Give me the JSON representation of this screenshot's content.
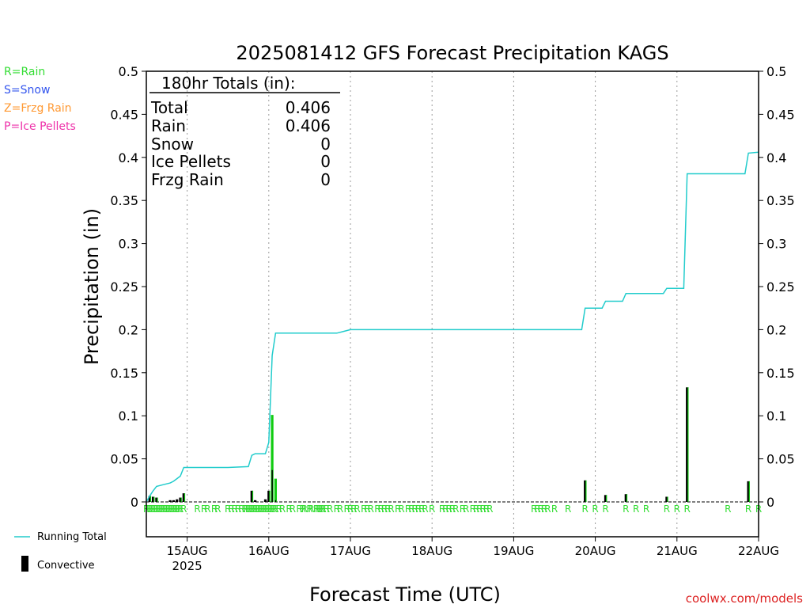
{
  "chart_data": {
    "type": "bar",
    "title": "2025081412 GFS Forecast Precipitation KAGS",
    "ylabel": "Precipitation (in)",
    "xlabel": "Forecast Time (UTC)",
    "credit": "coolwx.com/models",
    "ylim": [
      0,
      0.5
    ],
    "x_unit": "hours from 14AUG 12Z",
    "xlim": [
      0,
      180
    ],
    "yticks": [
      "0",
      "0.05",
      "0.1",
      "0.15",
      "0.2",
      "0.25",
      "0.3",
      "0.35",
      "0.4",
      "0.45",
      "0.5"
    ],
    "xticks": [
      {
        "x": 12,
        "label": "15AUG",
        "sub": "2025"
      },
      {
        "x": 36,
        "label": "16AUG"
      },
      {
        "x": 60,
        "label": "17AUG"
      },
      {
        "x": 84,
        "label": "18AUG"
      },
      {
        "x": 108,
        "label": "19AUG"
      },
      {
        "x": 132,
        "label": "20AUG"
      },
      {
        "x": 156,
        "label": "21AUG"
      },
      {
        "x": 180,
        "label": "22AUG"
      }
    ],
    "legend_types": [
      {
        "text": "R=Rain",
        "color": "#33dd33"
      },
      {
        "text": "S=Snow",
        "color": "#3355ee"
      },
      {
        "text": "Z=Frzg Rain",
        "color": "#ff9933"
      },
      {
        "text": "P=Ice Pellets",
        "color": "#ee33aa"
      }
    ],
    "legend_series": {
      "running_total": "Running Total",
      "convective": "Convective"
    },
    "totals": {
      "heading": "180hr Totals (in):",
      "rows": [
        {
          "label": "Total",
          "value": "0.406"
        },
        {
          "label": "Rain",
          "value": "0.406"
        },
        {
          "label": "Snow",
          "value": "0"
        },
        {
          "label": "Ice Pellets",
          "value": "0"
        },
        {
          "label": "Frzg Rain",
          "value": "0"
        }
      ]
    },
    "bars": [
      {
        "x": 1,
        "total": 0.007,
        "conv": 0.007
      },
      {
        "x": 2,
        "total": 0.006,
        "conv": 0.006
      },
      {
        "x": 3,
        "total": 0.005,
        "conv": 0.005
      },
      {
        "x": 7,
        "total": 0.002,
        "conv": 0.002
      },
      {
        "x": 8,
        "total": 0.002,
        "conv": 0.002
      },
      {
        "x": 9,
        "total": 0.003,
        "conv": 0.003
      },
      {
        "x": 10,
        "total": 0.005,
        "conv": 0.005
      },
      {
        "x": 11,
        "total": 0.01,
        "conv": 0.01
      },
      {
        "x": 31,
        "total": 0.013,
        "conv": 0.013
      },
      {
        "x": 32,
        "total": 0.002,
        "conv": 0.002
      },
      {
        "x": 35,
        "total": 0.003,
        "conv": 0.003
      },
      {
        "x": 36,
        "total": 0.013,
        "conv": 0.013
      },
      {
        "x": 37,
        "total": 0.101,
        "conv": 0.037
      },
      {
        "x": 38,
        "total": 0.027,
        "conv": 0.002
      },
      {
        "x": 129,
        "total": 0.025,
        "conv": 0.025
      },
      {
        "x": 135,
        "total": 0.008,
        "conv": 0.008
      },
      {
        "x": 141,
        "total": 0.009,
        "conv": 0.009
      },
      {
        "x": 153,
        "total": 0.006,
        "conv": 0.006
      },
      {
        "x": 159,
        "total": 0.133,
        "conv": 0.133
      },
      {
        "x": 177,
        "total": 0.024,
        "conv": 0.024
      }
    ],
    "running_total": [
      [
        0,
        0
      ],
      [
        1,
        0.007
      ],
      [
        2,
        0.013
      ],
      [
        3,
        0.018
      ],
      [
        5,
        0.02
      ],
      [
        7,
        0.022
      ],
      [
        8,
        0.024
      ],
      [
        9,
        0.027
      ],
      [
        10,
        0.03
      ],
      [
        11,
        0.04
      ],
      [
        24,
        0.04
      ],
      [
        30,
        0.041
      ],
      [
        31,
        0.054
      ],
      [
        32,
        0.056
      ],
      [
        35,
        0.056
      ],
      [
        36,
        0.069
      ],
      [
        37,
        0.17
      ],
      [
        38,
        0.196
      ],
      [
        56,
        0.196
      ],
      [
        58,
        0.198
      ],
      [
        60,
        0.2
      ],
      [
        84,
        0.2
      ],
      [
        128,
        0.2
      ],
      [
        129,
        0.225
      ],
      [
        134,
        0.225
      ],
      [
        135,
        0.233
      ],
      [
        140,
        0.233
      ],
      [
        141,
        0.242
      ],
      [
        152,
        0.242
      ],
      [
        153,
        0.248
      ],
      [
        158,
        0.248
      ],
      [
        159,
        0.381
      ],
      [
        176,
        0.381
      ],
      [
        177,
        0.405
      ],
      [
        180,
        0.406
      ]
    ],
    "rain_markers": [
      0,
      0.5,
      1,
      1.5,
      2,
      2.5,
      3,
      3.5,
      4,
      4.5,
      5,
      5.5,
      6,
      6.5,
      7,
      7.5,
      8,
      8.5,
      9,
      9.5,
      10,
      11,
      15,
      17,
      18,
      20,
      21,
      24,
      25,
      26,
      27,
      28,
      29,
      29.5,
      30,
      30.5,
      31,
      31.5,
      32,
      32.5,
      33,
      33.5,
      34,
      34.5,
      35,
      35.5,
      36,
      36.5,
      37,
      37.5,
      38,
      39,
      40,
      42,
      43,
      45,
      46,
      46.5,
      48,
      48.5,
      50,
      50.5,
      51,
      51.5,
      52,
      53,
      54,
      56,
      57,
      59,
      60,
      61,
      62,
      64,
      65,
      66,
      68,
      69,
      70,
      71,
      72,
      74,
      75,
      77,
      78,
      79,
      80,
      81,
      82,
      84,
      87,
      88,
      89,
      90,
      91,
      93,
      94,
      96,
      97,
      98,
      99,
      100,
      101,
      114,
      115,
      116,
      117,
      118,
      120,
      124,
      129,
      132,
      135,
      141,
      144,
      147,
      153,
      156,
      159,
      171,
      177,
      180
    ]
  }
}
